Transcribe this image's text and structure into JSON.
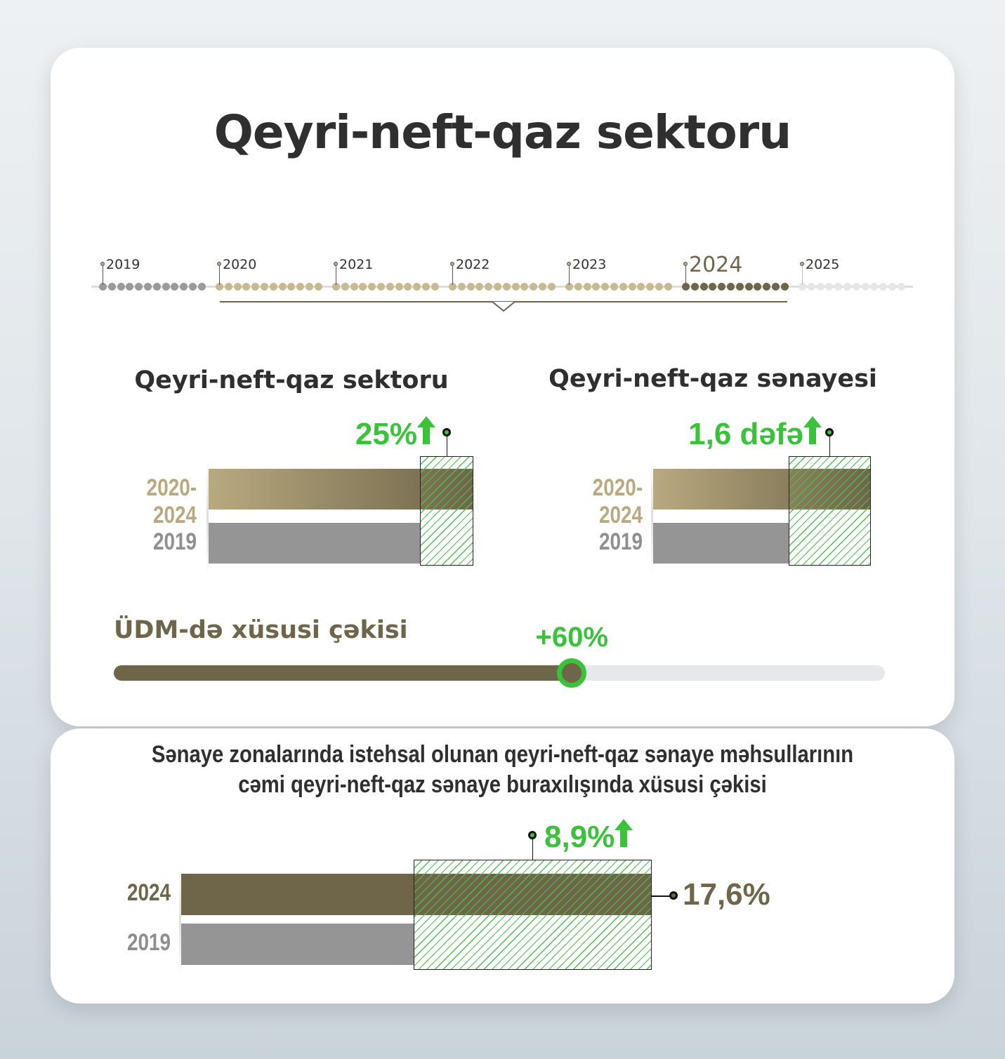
{
  "title": "Qeyri-neft-qaz sektoru",
  "timeline": {
    "years": [
      "2019",
      "2020",
      "2021",
      "2022",
      "2023",
      "2024",
      "2025"
    ],
    "highlight": "2024",
    "colors": {
      "past": "#9a9a9c",
      "period": "#c8ba90",
      "highlight": "#6f6549",
      "future": "#e6e6e6"
    }
  },
  "colors": {
    "olive": "#6f6549",
    "tan": "#b8a97f",
    "grey": "#959596",
    "green": "#39c23a"
  },
  "chart_data": [
    {
      "type": "bar",
      "title": "Qeyri-neft-qaz sektoru",
      "categories": [
        "2020-2024",
        "2019"
      ],
      "values": [
        1.25,
        1
      ],
      "annotation": "25%",
      "trend": "up"
    },
    {
      "type": "bar",
      "title": "Qeyri-neft-qaz sənayesi",
      "categories": [
        "2020-2024",
        "2019"
      ],
      "values": [
        1.6,
        1
      ],
      "annotation": "1,6 dəfə",
      "trend": "up"
    },
    {
      "type": "bar",
      "title": "Sənaye zonalarında istehsal olunan qeyri-neft-qaz sənaye məhsullarının cəmi qeyri-neft-qaz sənaye buraxılışında xüsusi çəkisi",
      "categories": [
        "2024",
        "2019"
      ],
      "values": [
        17.6,
        8.7
      ],
      "unit": "%",
      "annotation": "8,9%",
      "trend": "up",
      "value_label": "17,6%"
    }
  ],
  "gdp_share": {
    "label": "ÜDM-də xüsusi çəkisi",
    "value_label": "+60%",
    "value": 60
  },
  "bottom": {
    "line1": "Sənaye zonalarında istehsal olunan qeyri-neft-qaz sənaye məhsullarının",
    "line2": "cəmi qeyri-neft-qaz sənaye buraxılışında xüsusi çəkisi"
  }
}
